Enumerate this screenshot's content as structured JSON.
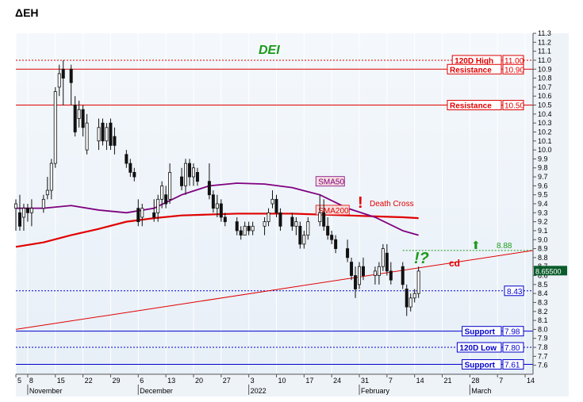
{
  "page_title": "ΔΕΗ",
  "chart_data": {
    "type": "candlestick",
    "ticker": "DEI",
    "ylim": [
      7.5,
      11.3
    ],
    "y_ticks": [
      7.6,
      7.7,
      7.8,
      7.9,
      8.0,
      8.1,
      8.2,
      8.3,
      8.4,
      8.5,
      8.6,
      8.7,
      8.8,
      8.9,
      9.0,
      9.1,
      9.2,
      9.3,
      9.4,
      9.5,
      9.6,
      9.7,
      9.8,
      9.9,
      10.0,
      10.1,
      10.2,
      10.3,
      10.4,
      10.5,
      10.6,
      10.7,
      10.8,
      10.9,
      11.0,
      11.1,
      11.2,
      11.3
    ],
    "y_tick_labels": [
      "7.6",
      "7.7",
      "7.8",
      "7.9",
      "8.0",
      "8.1",
      "8.2",
      "8.3",
      "8.4",
      "8.5",
      "8.6",
      "8.7",
      "8.8",
      "8.9",
      "9.0",
      "9.1",
      "9.2",
      "9.3",
      "9.4",
      "9.5",
      "9.6",
      "9.7",
      "9.8",
      "9.9",
      "10.0",
      "10.1",
      "10.2",
      "10.3",
      "10.4",
      "10.5",
      "10.6",
      "10.7",
      "10.8",
      "10.9",
      "11.0",
      "11.1",
      "11.2",
      "11.3"
    ],
    "x_ticks": [
      {
        "day": 0,
        "label": "5"
      },
      {
        "day": 3,
        "label": "8"
      },
      {
        "day": 10,
        "label": "15"
      },
      {
        "day": 17,
        "label": "22"
      },
      {
        "day": 24,
        "label": "29"
      },
      {
        "day": 31,
        "label": "6"
      },
      {
        "day": 38,
        "label": "13"
      },
      {
        "day": 45,
        "label": "20"
      },
      {
        "day": 52,
        "label": "27"
      },
      {
        "day": 59,
        "label": "3"
      },
      {
        "day": 66,
        "label": "10"
      },
      {
        "day": 73,
        "label": "17"
      },
      {
        "day": 80,
        "label": "24"
      },
      {
        "day": 87,
        "label": "31"
      },
      {
        "day": 94,
        "label": "7"
      },
      {
        "day": 101,
        "label": "14"
      },
      {
        "day": 108,
        "label": "21"
      },
      {
        "day": 115,
        "label": "28"
      },
      {
        "day": 122,
        "label": "7"
      },
      {
        "day": 129,
        "label": "14"
      }
    ],
    "x_months": [
      {
        "day": 3,
        "label": "November"
      },
      {
        "day": 31,
        "label": "December"
      },
      {
        "day": 59,
        "label": "2022"
      },
      {
        "day": 87,
        "label": "February"
      },
      {
        "day": 115,
        "label": "March"
      }
    ],
    "x_range": [
      0,
      131
    ],
    "last_price": "8.65500",
    "candles": [
      {
        "d": 0,
        "o": 9.35,
        "h": 9.45,
        "l": 9.1,
        "c": 9.4
      },
      {
        "d": 1,
        "o": 9.3,
        "h": 9.5,
        "l": 9.1,
        "c": 9.15
      },
      {
        "d": 2,
        "o": 9.25,
        "h": 9.4,
        "l": 9.1,
        "c": 9.35
      },
      {
        "d": 3,
        "o": 9.35,
        "h": 9.4,
        "l": 9.2,
        "c": 9.3
      },
      {
        "d": 4,
        "o": 9.3,
        "h": 9.45,
        "l": 9.15,
        "c": 9.35
      },
      {
        "d": 7,
        "o": 9.35,
        "h": 9.5,
        "l": 9.3,
        "c": 9.45
      },
      {
        "d": 8,
        "o": 9.5,
        "h": 9.7,
        "l": 9.45,
        "c": 9.55
      },
      {
        "d": 9,
        "o": 9.55,
        "h": 9.9,
        "l": 9.45,
        "c": 9.85
      },
      {
        "d": 10,
        "o": 9.85,
        "h": 10.7,
        "l": 9.8,
        "c": 10.65
      },
      {
        "d": 11,
        "o": 10.7,
        "h": 10.95,
        "l": 10.6,
        "c": 10.85
      },
      {
        "d": 12,
        "o": 10.9,
        "h": 11.0,
        "l": 10.5,
        "c": 10.8
      },
      {
        "d": 14,
        "o": 10.9,
        "h": 10.95,
        "l": 10.5,
        "c": 10.75
      },
      {
        "d": 15,
        "o": 10.5,
        "h": 10.6,
        "l": 10.15,
        "c": 10.2
      },
      {
        "d": 16,
        "o": 10.35,
        "h": 10.55,
        "l": 10.25,
        "c": 10.45
      },
      {
        "d": 17,
        "o": 10.45,
        "h": 10.5,
        "l": 10.15,
        "c": 10.25
      },
      {
        "d": 18,
        "o": 10.0,
        "h": 10.4,
        "l": 9.95,
        "c": 10.3
      },
      {
        "d": 21,
        "o": 10.1,
        "h": 10.35,
        "l": 10.0,
        "c": 10.25
      },
      {
        "d": 22,
        "o": 10.3,
        "h": 10.35,
        "l": 10.05,
        "c": 10.1
      },
      {
        "d": 23,
        "o": 10.1,
        "h": 10.3,
        "l": 10.0,
        "c": 10.25
      },
      {
        "d": 24,
        "o": 10.3,
        "h": 10.35,
        "l": 10.0,
        "c": 10.05
      },
      {
        "d": 25,
        "o": 10.15,
        "h": 10.25,
        "l": 9.95,
        "c": 10.05
      },
      {
        "d": 28,
        "o": 9.95,
        "h": 10.0,
        "l": 9.8,
        "c": 9.85
      },
      {
        "d": 29,
        "o": 9.85,
        "h": 9.9,
        "l": 9.7,
        "c": 9.75
      },
      {
        "d": 30,
        "o": 9.75,
        "h": 9.8,
        "l": 9.65,
        "c": 9.7
      },
      {
        "d": 31,
        "o": 9.35,
        "h": 9.45,
        "l": 9.15,
        "c": 9.2
      },
      {
        "d": 32,
        "o": 9.25,
        "h": 9.4,
        "l": 9.15,
        "c": 9.35
      },
      {
        "d": 35,
        "o": 9.3,
        "h": 9.45,
        "l": 9.2,
        "c": 9.25
      },
      {
        "d": 36,
        "o": 9.3,
        "h": 9.5,
        "l": 9.2,
        "c": 9.45
      },
      {
        "d": 37,
        "o": 9.45,
        "h": 9.65,
        "l": 9.35,
        "c": 9.6
      },
      {
        "d": 38,
        "o": 9.5,
        "h": 9.6,
        "l": 9.35,
        "c": 9.4
      },
      {
        "d": 39,
        "o": 9.45,
        "h": 9.85,
        "l": 9.4,
        "c": 9.75
      },
      {
        "d": 42,
        "o": 9.7,
        "h": 9.8,
        "l": 9.55,
        "c": 9.6
      },
      {
        "d": 43,
        "o": 9.6,
        "h": 9.9,
        "l": 9.5,
        "c": 9.85
      },
      {
        "d": 44,
        "o": 9.85,
        "h": 9.9,
        "l": 9.6,
        "c": 9.7
      },
      {
        "d": 45,
        "o": 9.7,
        "h": 9.85,
        "l": 9.6,
        "c": 9.8
      },
      {
        "d": 46,
        "o": 9.75,
        "h": 9.8,
        "l": 9.6,
        "c": 9.65
      },
      {
        "d": 49,
        "o": 9.65,
        "h": 9.85,
        "l": 9.45,
        "c": 9.5
      },
      {
        "d": 50,
        "o": 9.5,
        "h": 9.55,
        "l": 9.3,
        "c": 9.35
      },
      {
        "d": 51,
        "o": 9.35,
        "h": 9.5,
        "l": 9.25,
        "c": 9.4
      },
      {
        "d": 52,
        "o": 9.4,
        "h": 9.45,
        "l": 9.2,
        "c": 9.25
      },
      {
        "d": 53,
        "o": 9.25,
        "h": 9.3,
        "l": 9.15,
        "c": 9.2
      },
      {
        "d": 56,
        "o": 9.2,
        "h": 9.25,
        "l": 9.05,
        "c": 9.1
      },
      {
        "d": 57,
        "o": 9.1,
        "h": 9.15,
        "l": 9.0,
        "c": 9.05
      },
      {
        "d": 58,
        "o": 9.05,
        "h": 9.2,
        "l": 9.05,
        "c": 9.15
      },
      {
        "d": 59,
        "o": 9.15,
        "h": 9.2,
        "l": 9.05,
        "c": 9.1
      },
      {
        "d": 60,
        "o": 9.1,
        "h": 9.2,
        "l": 9.05,
        "c": 9.15
      },
      {
        "d": 63,
        "o": 9.15,
        "h": 9.25,
        "l": 9.05,
        "c": 9.2
      },
      {
        "d": 64,
        "o": 9.2,
        "h": 9.35,
        "l": 9.15,
        "c": 9.3
      },
      {
        "d": 65,
        "o": 9.4,
        "h": 9.55,
        "l": 9.35,
        "c": 9.45
      },
      {
        "d": 66,
        "o": 9.45,
        "h": 9.5,
        "l": 9.25,
        "c": 9.3
      },
      {
        "d": 67,
        "o": 9.3,
        "h": 9.35,
        "l": 9.1,
        "c": 9.15
      },
      {
        "d": 70,
        "o": 9.25,
        "h": 9.3,
        "l": 9.1,
        "c": 9.15
      },
      {
        "d": 71,
        "o": 9.15,
        "h": 9.25,
        "l": 9.05,
        "c": 9.2
      },
      {
        "d": 72,
        "o": 9.15,
        "h": 9.2,
        "l": 8.9,
        "c": 8.95
      },
      {
        "d": 73,
        "o": 8.95,
        "h": 9.1,
        "l": 8.9,
        "c": 9.05
      },
      {
        "d": 74,
        "o": 9.05,
        "h": 9.25,
        "l": 9.0,
        "c": 9.2
      },
      {
        "d": 77,
        "o": 9.2,
        "h": 9.5,
        "l": 9.15,
        "c": 9.3
      },
      {
        "d": 78,
        "o": 9.3,
        "h": 9.45,
        "l": 9.1,
        "c": 9.15
      },
      {
        "d": 79,
        "o": 9.15,
        "h": 9.25,
        "l": 9.0,
        "c": 9.05
      },
      {
        "d": 80,
        "o": 9.05,
        "h": 9.1,
        "l": 8.95,
        "c": 9.0
      },
      {
        "d": 81,
        "o": 9.0,
        "h": 9.05,
        "l": 8.85,
        "c": 8.9
      },
      {
        "d": 84,
        "o": 8.9,
        "h": 9.0,
        "l": 8.75,
        "c": 8.8
      },
      {
        "d": 85,
        "o": 8.75,
        "h": 8.8,
        "l": 8.55,
        "c": 8.6
      },
      {
        "d": 86,
        "o": 8.6,
        "h": 8.7,
        "l": 8.35,
        "c": 8.45
      },
      {
        "d": 87,
        "o": 8.5,
        "h": 8.75,
        "l": 8.45,
        "c": 8.7
      },
      {
        "d": 88,
        "o": 8.7,
        "h": 8.8,
        "l": 8.55,
        "c": 8.6
      },
      {
        "d": 91,
        "o": 8.6,
        "h": 8.7,
        "l": 8.5,
        "c": 8.65
      },
      {
        "d": 92,
        "o": 8.6,
        "h": 8.75,
        "l": 8.5,
        "c": 8.7
      },
      {
        "d": 93,
        "o": 8.7,
        "h": 8.95,
        "l": 8.65,
        "c": 8.9
      },
      {
        "d": 94,
        "o": 8.85,
        "h": 8.95,
        "l": 8.6,
        "c": 8.65
      },
      {
        "d": 95,
        "o": 8.65,
        "h": 8.75,
        "l": 8.5,
        "c": 8.55
      },
      {
        "d": 98,
        "o": 8.7,
        "h": 8.75,
        "l": 8.45,
        "c": 8.5
      },
      {
        "d": 99,
        "o": 8.45,
        "h": 8.5,
        "l": 8.15,
        "c": 8.25
      },
      {
        "d": 100,
        "o": 8.25,
        "h": 8.4,
        "l": 8.2,
        "c": 8.35
      },
      {
        "d": 101,
        "o": 8.35,
        "h": 8.45,
        "l": 8.3,
        "c": 8.4
      },
      {
        "d": 102,
        "o": 8.4,
        "h": 8.7,
        "l": 8.35,
        "c": 8.65
      }
    ],
    "sma50": {
      "name": "SMA50",
      "color": "#800080",
      "points": [
        [
          0,
          9.35
        ],
        [
          7,
          9.35
        ],
        [
          14,
          9.38
        ],
        [
          21,
          9.33
        ],
        [
          28,
          9.3
        ],
        [
          35,
          9.35
        ],
        [
          42,
          9.5
        ],
        [
          49,
          9.6
        ],
        [
          56,
          9.63
        ],
        [
          63,
          9.62
        ],
        [
          70,
          9.58
        ],
        [
          77,
          9.5
        ],
        [
          84,
          9.35
        ],
        [
          91,
          9.25
        ],
        [
          98,
          9.1
        ],
        [
          102,
          9.05
        ]
      ]
    },
    "sma200": {
      "name": "SMA200",
      "color": "#e00000",
      "points": [
        [
          0,
          8.92
        ],
        [
          7,
          8.97
        ],
        [
          14,
          9.05
        ],
        [
          21,
          9.12
        ],
        [
          28,
          9.2
        ],
        [
          35,
          9.24
        ],
        [
          42,
          9.27
        ],
        [
          49,
          9.28
        ],
        [
          56,
          9.29
        ],
        [
          63,
          9.29
        ],
        [
          70,
          9.29
        ],
        [
          77,
          9.28
        ],
        [
          84,
          9.27
        ],
        [
          91,
          9.26
        ],
        [
          98,
          9.25
        ],
        [
          102,
          9.24
        ]
      ]
    },
    "trendline": {
      "color": "#e00000",
      "from": [
        0,
        8.0
      ],
      "to": [
        131,
        8.88
      ],
      "label": "cd"
    },
    "levels": [
      {
        "key": "high120",
        "value": 11.0,
        "label": "120D High",
        "value_label": "11.00",
        "color": "#e00000",
        "style": "dotted"
      },
      {
        "key": "res1",
        "value": 10.9,
        "label": "Resistance",
        "value_label": "10.90",
        "color": "#e00000",
        "style": "solid"
      },
      {
        "key": "res2",
        "value": 10.5,
        "label": "Resistance",
        "value_label": "10.50",
        "color": "#e00000",
        "style": "solid"
      },
      {
        "key": "support1",
        "value": 7.98,
        "label": "Support",
        "value_label": "7.98",
        "color": "#0000cc",
        "style": "solid"
      },
      {
        "key": "low120",
        "value": 7.8,
        "label": "120D Low",
        "value_label": "7.80",
        "color": "#0000cc",
        "style": "dotted"
      },
      {
        "key": "support2",
        "value": 7.61,
        "label": "Support",
        "value_label": "7.61",
        "color": "#0000cc",
        "style": "solid"
      }
    ],
    "level_843": {
      "value": 8.43,
      "label": "8.43",
      "color": "#0000cc"
    },
    "level_888": {
      "value": 8.88,
      "label": "8.88",
      "color": "#1a9a1a"
    },
    "annotations": {
      "death_cross": "Death Cross",
      "exclamation": "!",
      "question": "!?",
      "up_arrow": "⬆"
    }
  }
}
